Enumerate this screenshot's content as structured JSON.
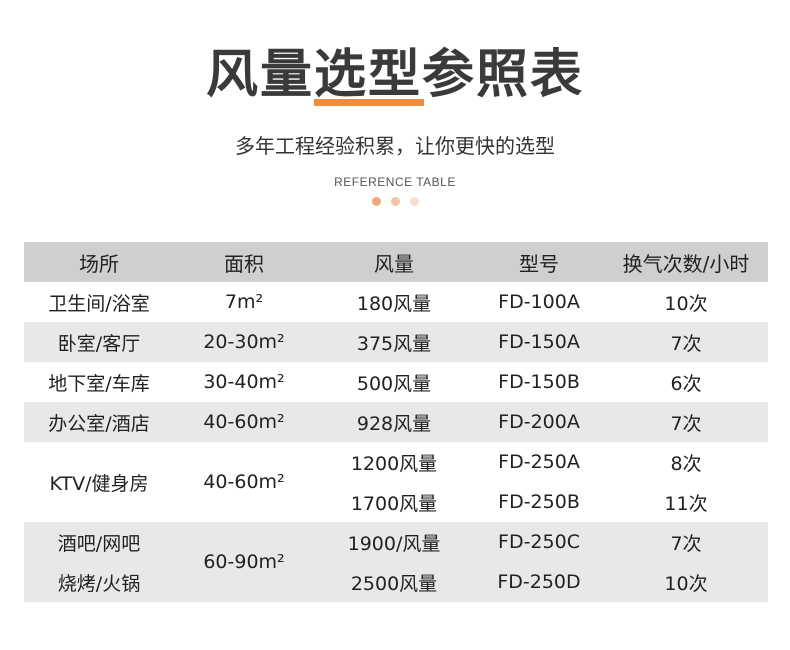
{
  "header": {
    "title_part1": "风量",
    "title_part2": "选型",
    "title_part3": "参照表",
    "subtitle": "多年工程经验积累，让你更快的选型",
    "ref_label": "REFERENCE TABLE",
    "dot_colors": [
      "#f0a77a",
      "#f3c4a3",
      "#f7dfcf"
    ]
  },
  "table": {
    "headers": [
      "场所",
      "面积",
      "风量",
      "型号",
      "换气次数/小时"
    ],
    "rows": [
      {
        "place": "卫生间/浴室",
        "area": "7m²",
        "airflow": "180风量",
        "model": "FD-100A",
        "changes": "10次"
      },
      {
        "place": "卧室/客厅",
        "area": "20-30m²",
        "airflow": "375风量",
        "model": "FD-150A",
        "changes": "7次"
      },
      {
        "place": "地下室/车库",
        "area": "30-40m²",
        "airflow": "500风量",
        "model": "FD-150B",
        "changes": "6次"
      },
      {
        "place": "办公室/酒店",
        "area": "40-60m²",
        "airflow": "928风量",
        "model": "FD-200A",
        "changes": "7次"
      },
      {
        "place": "KTV/健身房",
        "area": "40-60m²",
        "sub": [
          {
            "airflow": "1200风量",
            "model": "FD-250A",
            "changes": "8次"
          },
          {
            "airflow": "1700风量",
            "model": "FD-250B",
            "changes": "11次"
          }
        ]
      },
      {
        "place1": "酒吧/网吧",
        "place2": "烧烤/火锅",
        "area": "60-90m²",
        "sub": [
          {
            "airflow": "1900/风量",
            "model": "FD-250C",
            "changes": "7次"
          },
          {
            "airflow": "2500风量",
            "model": "FD-250D",
            "changes": "10次"
          }
        ]
      }
    ]
  }
}
